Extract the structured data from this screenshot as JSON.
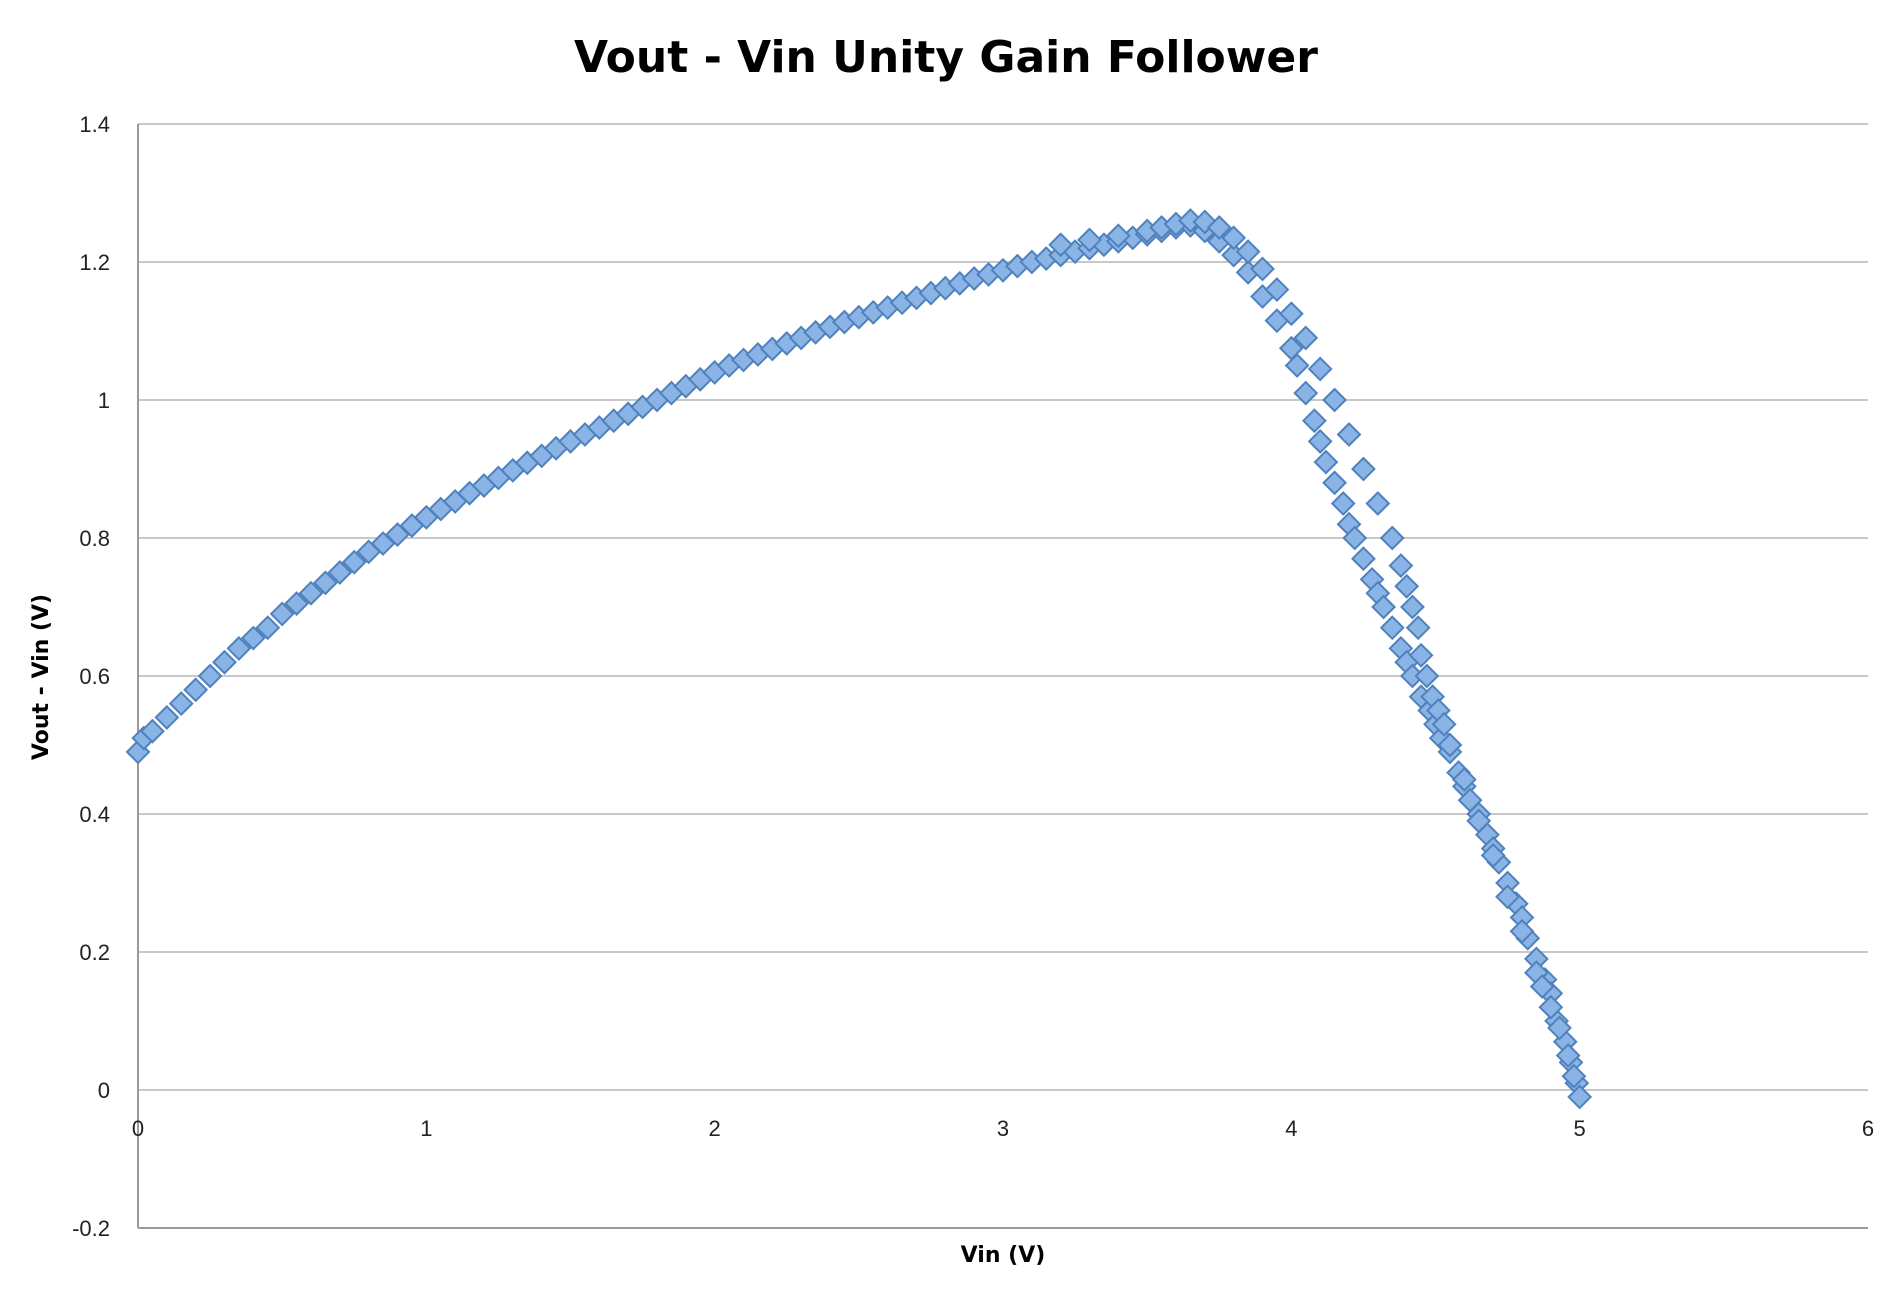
{
  "chart_data": {
    "type": "scatter",
    "title": "Vout - Vin Unity Gain Follower",
    "xlabel": "Vin (V)",
    "ylabel": "Vout - Vin (V)",
    "xlim": [
      0,
      6
    ],
    "ylim": [
      -0.2,
      1.4
    ],
    "x_ticks": [
      "0",
      "1",
      "2",
      "3",
      "4",
      "5",
      "6"
    ],
    "y_ticks": [
      "-0.2",
      "0",
      "0.2",
      "0.4",
      "0.6",
      "0.8",
      "1",
      "1.2",
      "1.4"
    ],
    "x_tick_values": [
      0,
      1,
      2,
      3,
      4,
      5,
      6
    ],
    "y_tick_values": [
      -0.2,
      0,
      0.2,
      0.4,
      0.6,
      0.8,
      1,
      1.2,
      1.4
    ],
    "grid": true,
    "legend": "none",
    "marker": "diamond",
    "series_color": "#4f81bd",
    "marker_fill": "#8ab4e6",
    "series": [
      {
        "points": [
          [
            0,
            0.49
          ],
          [
            0.02,
            0.51
          ],
          [
            0.05,
            0.52
          ],
          [
            0.1,
            0.54
          ],
          [
            0.15,
            0.56
          ],
          [
            0.2,
            0.58
          ],
          [
            0.25,
            0.6
          ],
          [
            0.3,
            0.62
          ],
          [
            0.35,
            0.64
          ],
          [
            0.4,
            0.655
          ],
          [
            0.45,
            0.67
          ],
          [
            0.5,
            0.69
          ],
          [
            0.55,
            0.705
          ],
          [
            0.6,
            0.72
          ],
          [
            0.65,
            0.735
          ],
          [
            0.7,
            0.75
          ],
          [
            0.75,
            0.765
          ],
          [
            0.8,
            0.78
          ],
          [
            0.85,
            0.792
          ],
          [
            0.9,
            0.805
          ],
          [
            0.95,
            0.818
          ],
          [
            1.0,
            0.83
          ],
          [
            1.05,
            0.842
          ],
          [
            1.1,
            0.853
          ],
          [
            1.15,
            0.865
          ],
          [
            1.2,
            0.876
          ],
          [
            1.25,
            0.887
          ],
          [
            1.3,
            0.898
          ],
          [
            1.35,
            0.909
          ],
          [
            1.4,
            0.919
          ],
          [
            1.45,
            0.93
          ],
          [
            1.5,
            0.94
          ],
          [
            1.55,
            0.95
          ],
          [
            1.6,
            0.96
          ],
          [
            1.65,
            0.97
          ],
          [
            1.7,
            0.98
          ],
          [
            1.75,
            0.99
          ],
          [
            1.8,
            1.0
          ],
          [
            1.85,
            1.01
          ],
          [
            1.9,
            1.02
          ],
          [
            1.95,
            1.03
          ],
          [
            2.0,
            1.04
          ],
          [
            2.05,
            1.05
          ],
          [
            2.1,
            1.058
          ],
          [
            2.15,
            1.066
          ],
          [
            2.2,
            1.074
          ],
          [
            2.25,
            1.082
          ],
          [
            2.3,
            1.09
          ],
          [
            2.35,
            1.098
          ],
          [
            2.4,
            1.106
          ],
          [
            2.45,
            1.113
          ],
          [
            2.5,
            1.12
          ],
          [
            2.55,
            1.127
          ],
          [
            2.6,
            1.134
          ],
          [
            2.65,
            1.141
          ],
          [
            2.7,
            1.148
          ],
          [
            2.75,
            1.155
          ],
          [
            2.8,
            1.162
          ],
          [
            2.85,
            1.169
          ],
          [
            2.9,
            1.176
          ],
          [
            2.95,
            1.182
          ],
          [
            3.0,
            1.188
          ],
          [
            3.05,
            1.194
          ],
          [
            3.1,
            1.2
          ],
          [
            3.15,
            1.205
          ],
          [
            3.2,
            1.21
          ],
          [
            3.25,
            1.215
          ],
          [
            3.3,
            1.22
          ],
          [
            3.35,
            1.225
          ],
          [
            3.4,
            1.23
          ],
          [
            3.45,
            1.235
          ],
          [
            3.5,
            1.24
          ],
          [
            3.55,
            1.245
          ],
          [
            3.6,
            1.25
          ],
          [
            3.65,
            1.253
          ],
          [
            3.7,
            1.245
          ],
          [
            3.75,
            1.23
          ],
          [
            3.8,
            1.21
          ],
          [
            3.85,
            1.185
          ],
          [
            3.9,
            1.15
          ],
          [
            3.95,
            1.115
          ],
          [
            4.0,
            1.075
          ],
          [
            4.02,
            1.05
          ],
          [
            4.05,
            1.01
          ],
          [
            4.08,
            0.97
          ],
          [
            4.1,
            0.94
          ],
          [
            4.12,
            0.91
          ],
          [
            4.15,
            0.88
          ],
          [
            4.18,
            0.85
          ],
          [
            4.2,
            0.82
          ],
          [
            4.22,
            0.8
          ],
          [
            4.25,
            0.77
          ],
          [
            4.28,
            0.74
          ],
          [
            4.3,
            0.72
          ],
          [
            4.32,
            0.7
          ],
          [
            4.35,
            0.67
          ],
          [
            4.38,
            0.64
          ],
          [
            4.4,
            0.62
          ],
          [
            4.42,
            0.6
          ],
          [
            4.45,
            0.57
          ],
          [
            4.48,
            0.55
          ],
          [
            4.5,
            0.53
          ],
          [
            4.52,
            0.51
          ],
          [
            4.55,
            0.49
          ],
          [
            4.58,
            0.46
          ],
          [
            4.6,
            0.44
          ],
          [
            4.62,
            0.42
          ],
          [
            4.65,
            0.4
          ],
          [
            4.68,
            0.37
          ],
          [
            4.7,
            0.35
          ],
          [
            4.72,
            0.33
          ],
          [
            4.75,
            0.3
          ],
          [
            4.78,
            0.27
          ],
          [
            4.8,
            0.25
          ],
          [
            4.82,
            0.22
          ],
          [
            4.85,
            0.19
          ],
          [
            4.88,
            0.16
          ],
          [
            4.9,
            0.14
          ],
          [
            4.92,
            0.1
          ],
          [
            4.95,
            0.07
          ],
          [
            4.97,
            0.04
          ],
          [
            4.99,
            0.01
          ],
          [
            5.0,
            -0.01
          ],
          [
            3.2,
            1.225
          ],
          [
            3.3,
            1.232
          ],
          [
            3.4,
            1.238
          ],
          [
            3.5,
            1.245
          ],
          [
            3.55,
            1.25
          ],
          [
            3.6,
            1.255
          ],
          [
            3.65,
            1.26
          ],
          [
            3.7,
            1.258
          ],
          [
            3.75,
            1.25
          ],
          [
            3.8,
            1.235
          ],
          [
            3.85,
            1.215
          ],
          [
            3.9,
            1.19
          ],
          [
            3.95,
            1.16
          ],
          [
            4.0,
            1.125
          ],
          [
            4.05,
            1.09
          ],
          [
            4.1,
            1.045
          ],
          [
            4.15,
            1.0
          ],
          [
            4.2,
            0.95
          ],
          [
            4.25,
            0.9
          ],
          [
            4.3,
            0.85
          ],
          [
            4.35,
            0.8
          ],
          [
            4.38,
            0.76
          ],
          [
            4.4,
            0.73
          ],
          [
            4.42,
            0.7
          ],
          [
            4.44,
            0.67
          ],
          [
            4.45,
            0.63
          ],
          [
            4.47,
            0.6
          ],
          [
            4.49,
            0.57
          ],
          [
            4.51,
            0.55
          ],
          [
            4.53,
            0.53
          ],
          [
            4.55,
            0.5
          ],
          [
            4.6,
            0.45
          ],
          [
            4.65,
            0.39
          ],
          [
            4.7,
            0.34
          ],
          [
            4.75,
            0.28
          ],
          [
            4.8,
            0.23
          ],
          [
            4.85,
            0.17
          ],
          [
            4.87,
            0.15
          ],
          [
            4.9,
            0.12
          ],
          [
            4.93,
            0.09
          ],
          [
            4.96,
            0.05
          ],
          [
            4.98,
            0.02
          ]
        ]
      }
    ]
  }
}
